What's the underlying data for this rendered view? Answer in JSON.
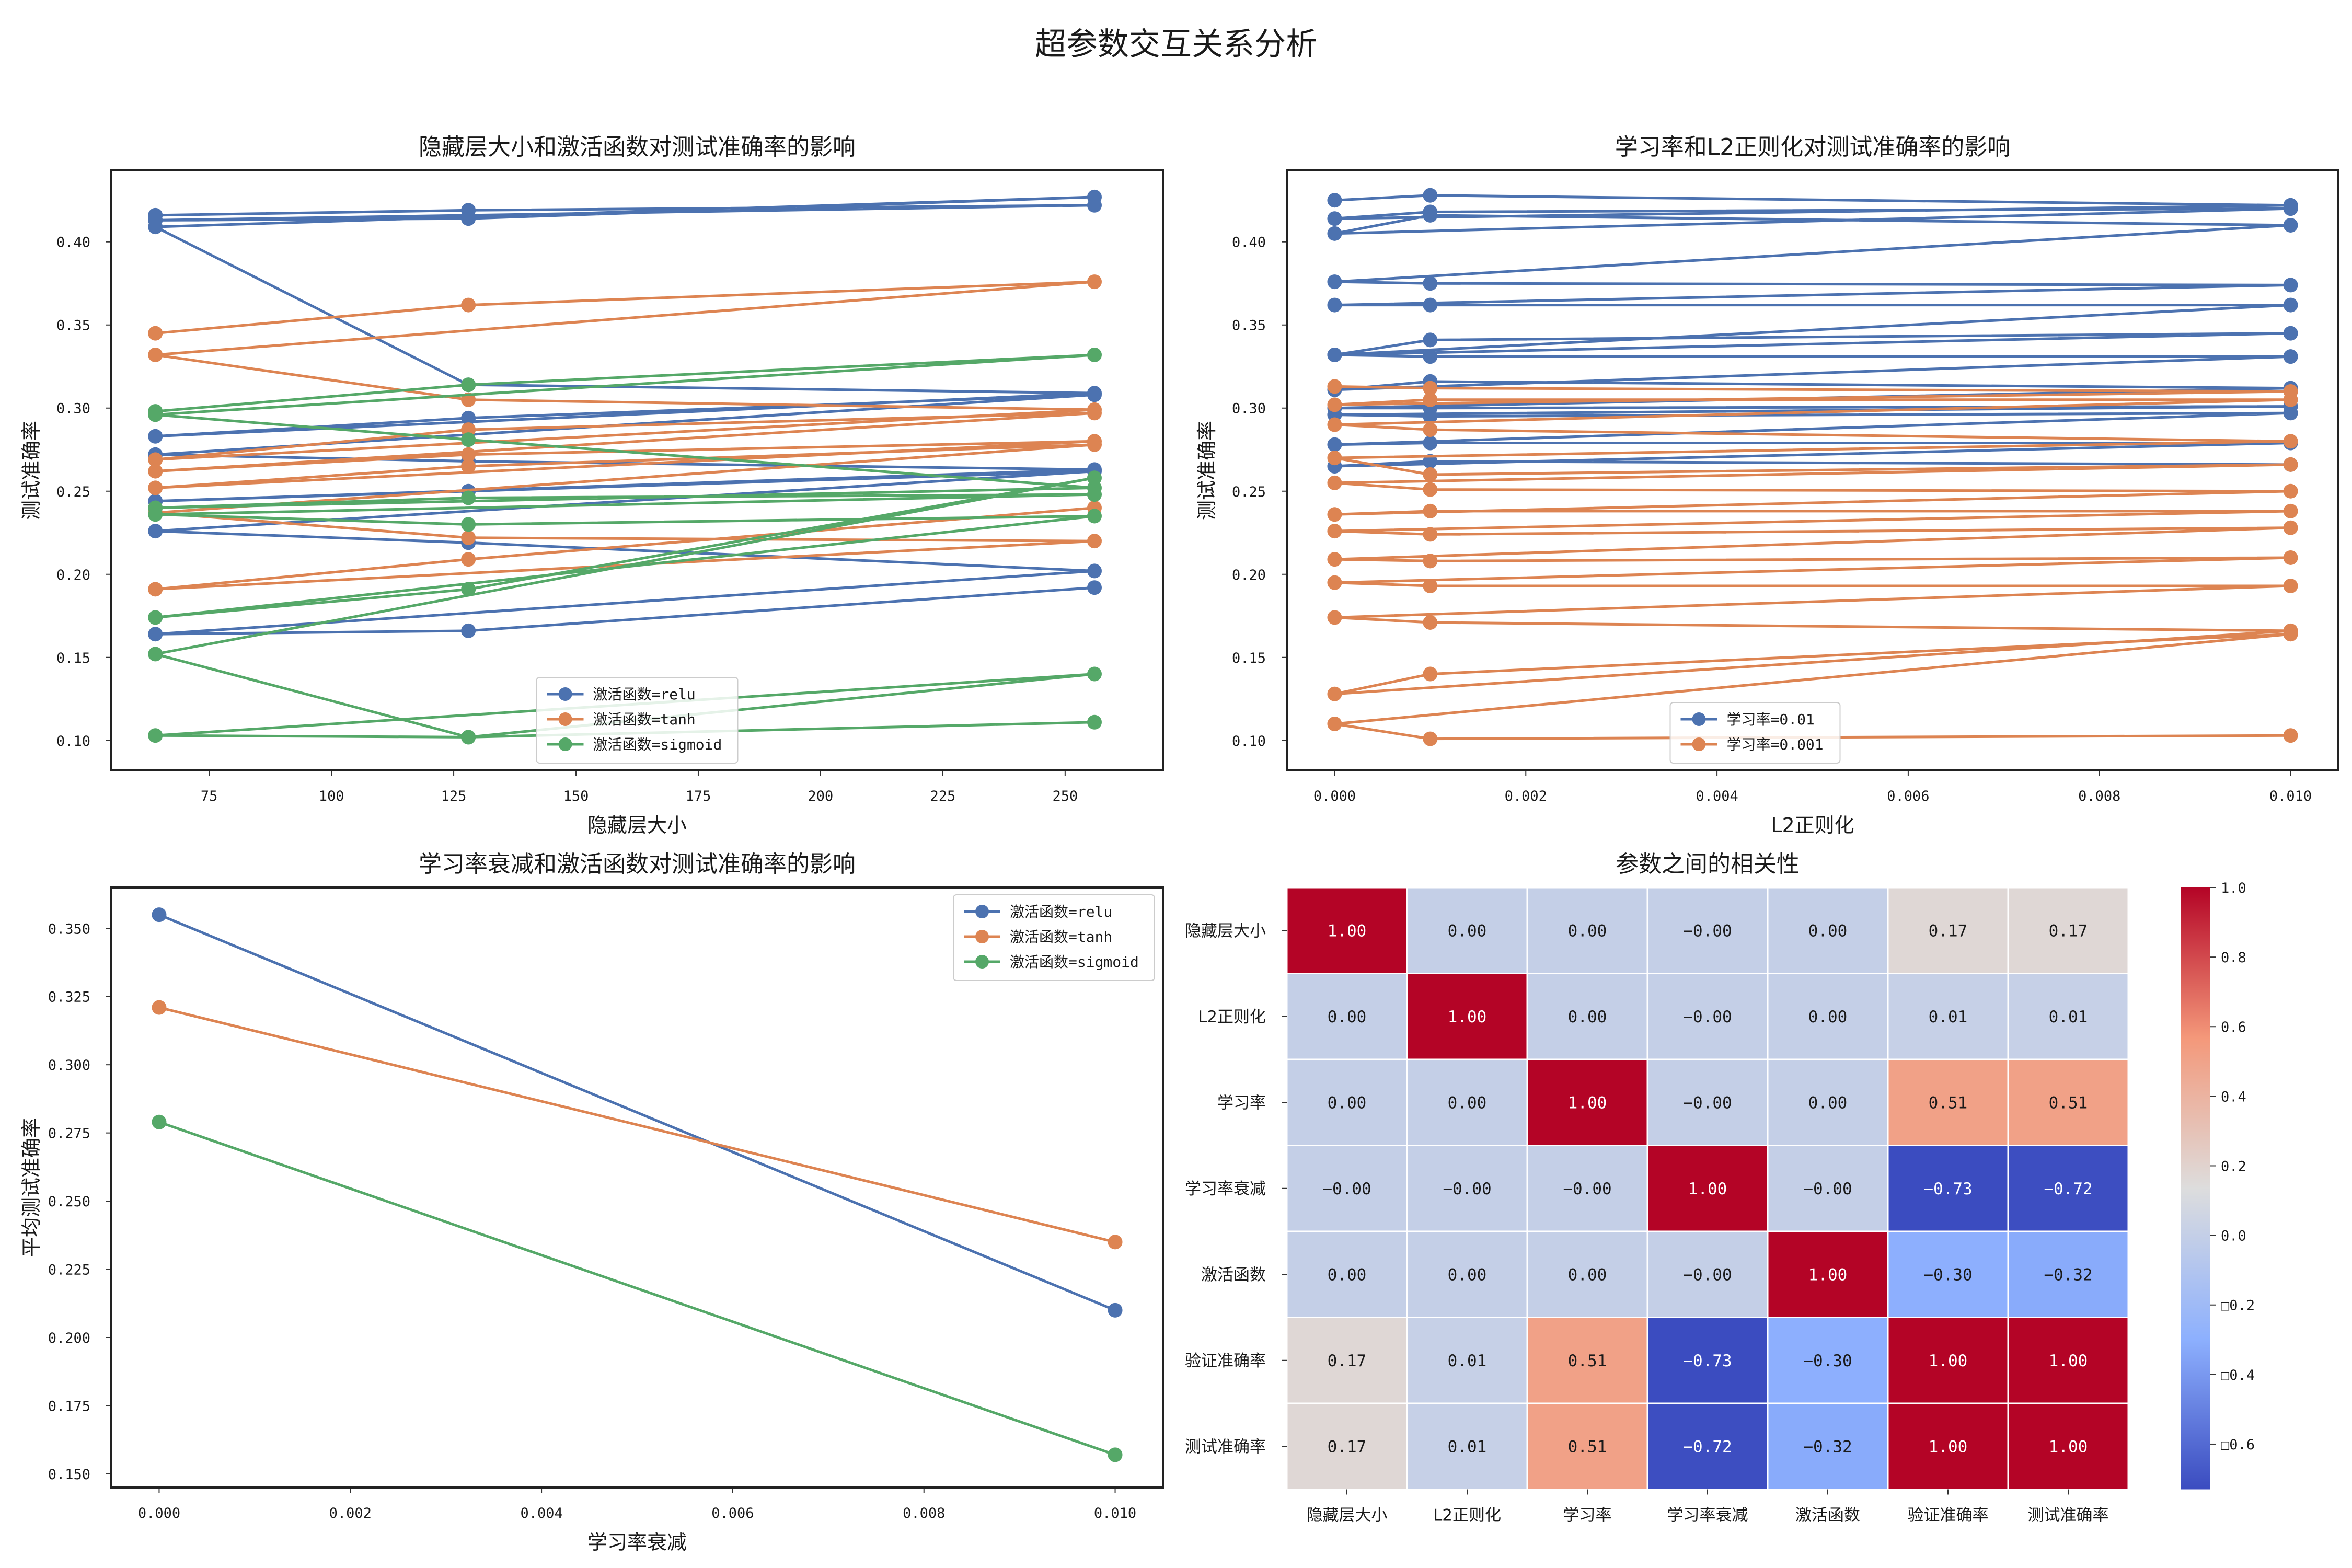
{
  "suptitle": "超参数交互关系分析",
  "colors": {
    "relu": "#4c72b0",
    "tanh": "#dd8452",
    "sigmoid": "#55a868",
    "lr01": "#4c72b0",
    "lr001": "#dd8452",
    "heat_low": "#3b4cc0",
    "heat_mid": "#dddddd",
    "heat_high": "#b40426"
  },
  "chart_data": [
    {
      "type": "line",
      "title": "隐藏层大小和激活函数对测试准确率的影响",
      "xlabel": "隐藏层大小",
      "ylabel": "测试准确率",
      "xlim": [
        55,
        270
      ],
      "ylim": [
        0.082,
        0.443
      ],
      "xticks": [
        75,
        100,
        125,
        150,
        175,
        200,
        225,
        250
      ],
      "yticks": [
        0.1,
        0.15,
        0.2,
        0.25,
        0.3,
        0.35,
        0.4
      ],
      "legend": "lower-center",
      "series": [
        {
          "name": "激活函数=relu",
          "color_key": "relu",
          "x": [
            64,
            128,
            256,
            64,
            128,
            256,
            64,
            128,
            256,
            64,
            128,
            256,
            64,
            128,
            256,
            64,
            128,
            256,
            64,
            128,
            256,
            64,
            128,
            256
          ],
          "y": [
            0.416,
            0.419,
            0.422,
            0.413,
            0.414,
            0.427,
            0.409,
            0.314,
            0.309,
            0.283,
            0.294,
            0.308,
            0.272,
            0.268,
            0.263,
            0.244,
            0.25,
            0.262,
            0.226,
            0.219,
            0.202,
            0.164,
            0.166,
            0.192
          ]
        },
        {
          "name": "激活函数=tanh",
          "color_key": "tanh",
          "x": [
            64,
            128,
            256,
            64,
            128,
            256,
            64,
            128,
            256,
            64,
            128,
            256,
            64,
            128,
            256,
            64,
            128,
            256,
            64,
            128,
            256
          ],
          "y": [
            0.345,
            0.362,
            0.376,
            0.332,
            0.305,
            0.299,
            0.269,
            0.287,
            0.297,
            0.262,
            0.272,
            0.28,
            0.252,
            0.265,
            0.278,
            0.237,
            0.222,
            0.22,
            0.191,
            0.209,
            0.24
          ]
        },
        {
          "name": "激活函数=sigmoid",
          "color_key": "sigmoid",
          "x": [
            64,
            128,
            256,
            64,
            128,
            256,
            64,
            128,
            256,
            64,
            128,
            256,
            64,
            128,
            256,
            64,
            128,
            256,
            64,
            128,
            256
          ],
          "y": [
            0.298,
            0.314,
            0.332,
            0.296,
            0.281,
            0.252,
            0.24,
            0.246,
            0.248,
            0.236,
            0.23,
            0.235,
            0.174,
            0.191,
            0.258,
            0.152,
            0.102,
            0.14,
            0.103,
            0.102,
            0.111
          ]
        }
      ]
    },
    {
      "type": "line",
      "title": "学习率和L2正则化对测试准确率的影响",
      "xlabel": "L2正则化",
      "ylabel": "测试准确率",
      "xlim": [
        -0.0005,
        0.0105
      ],
      "ylim": [
        0.082,
        0.443
      ],
      "xticks": [
        0.0,
        0.002,
        0.004,
        0.006,
        0.008,
        0.01
      ],
      "yticks": [
        0.1,
        0.15,
        0.2,
        0.25,
        0.3,
        0.35,
        0.4
      ],
      "legend": "lower-center",
      "series": [
        {
          "name": "学习率=0.01",
          "color_key": "lr01",
          "x": [
            0,
            0.001,
            0.01,
            0,
            0.001,
            0.01,
            0,
            0.001,
            0.01,
            0,
            0.001,
            0.01,
            0,
            0.001,
            0.01,
            0,
            0.001,
            0.01,
            0,
            0.001,
            0.01,
            0,
            0.001,
            0.01,
            0,
            0.001,
            0.01,
            0,
            0.001,
            0.01,
            0,
            0.001,
            0.01,
            0,
            0.001,
            0.01
          ],
          "y": [
            0.425,
            0.428,
            0.422,
            0.414,
            0.418,
            0.42,
            0.405,
            0.416,
            0.41,
            0.376,
            0.375,
            0.374,
            0.362,
            0.362,
            0.362,
            0.332,
            0.341,
            0.345,
            0.332,
            0.331,
            0.331,
            0.311,
            0.316,
            0.312,
            0.3,
            0.3,
            0.301,
            0.296,
            0.295,
            0.297,
            0.278,
            0.279,
            0.279,
            0.265,
            0.268,
            0.266
          ]
        },
        {
          "name": "学习率=0.001",
          "color_key": "lr001",
          "x": [
            0,
            0.001,
            0.01,
            0,
            0.001,
            0.01,
            0,
            0.001,
            0.01,
            0,
            0.001,
            0.01,
            0,
            0.001,
            0.01,
            0,
            0.001,
            0.01,
            0,
            0.001,
            0.01,
            0,
            0.001,
            0.01,
            0,
            0.001,
            0.01,
            0,
            0.001,
            0.01,
            0,
            0.001,
            0.01,
            0,
            0.001,
            0.01
          ],
          "y": [
            0.313,
            0.312,
            0.31,
            0.302,
            0.305,
            0.305,
            0.29,
            0.287,
            0.28,
            0.27,
            0.26,
            0.266,
            0.255,
            0.251,
            0.25,
            0.236,
            0.238,
            0.238,
            0.226,
            0.224,
            0.228,
            0.209,
            0.208,
            0.21,
            0.195,
            0.193,
            0.193,
            0.174,
            0.171,
            0.166,
            0.128,
            0.14,
            0.164,
            0.11,
            0.101,
            0.103
          ]
        }
      ]
    },
    {
      "type": "line",
      "title": "学习率衰减和激活函数对测试准确率的影响",
      "xlabel": "学习率衰减",
      "ylabel": "平均测试准确率",
      "xlim": [
        -0.0005,
        0.0105
      ],
      "ylim": [
        0.145,
        0.365
      ],
      "xticks": [
        0.0,
        0.002,
        0.004,
        0.006,
        0.008,
        0.01
      ],
      "yticks": [
        0.15,
        0.175,
        0.2,
        0.225,
        0.25,
        0.275,
        0.3,
        0.325,
        0.35
      ],
      "legend": "top-right",
      "series": [
        {
          "name": "激活函数=relu",
          "color_key": "relu",
          "x": [
            0.0,
            0.01
          ],
          "y": [
            0.355,
            0.21
          ]
        },
        {
          "name": "激活函数=tanh",
          "color_key": "tanh",
          "x": [
            0.0,
            0.01
          ],
          "y": [
            0.321,
            0.235
          ]
        },
        {
          "name": "激活函数=sigmoid",
          "color_key": "sigmoid",
          "x": [
            0.0,
            0.01
          ],
          "y": [
            0.279,
            0.157
          ]
        }
      ]
    },
    {
      "type": "heatmap",
      "title": "参数之间的相关性",
      "labels": [
        "隐藏层大小",
        "L2正则化",
        "学习率",
        "学习率衰减",
        "激活函数",
        "验证准确率",
        "测试准确率"
      ],
      "matrix": [
        [
          1.0,
          0.0,
          0.0,
          -0.0,
          0.0,
          0.17,
          0.17
        ],
        [
          0.0,
          1.0,
          0.0,
          -0.0,
          0.0,
          0.01,
          0.01
        ],
        [
          0.0,
          0.0,
          1.0,
          -0.0,
          0.0,
          0.51,
          0.51
        ],
        [
          -0.0,
          -0.0,
          -0.0,
          1.0,
          -0.0,
          -0.73,
          -0.72
        ],
        [
          0.0,
          0.0,
          0.0,
          -0.0,
          1.0,
          -0.3,
          -0.32
        ],
        [
          0.17,
          0.01,
          0.51,
          -0.73,
          -0.3,
          1.0,
          1.0
        ],
        [
          0.17,
          0.01,
          0.51,
          -0.72,
          -0.32,
          1.0,
          1.0
        ]
      ],
      "display": [
        [
          "1.00",
          "0.00",
          "0.00",
          "−0.00",
          "0.00",
          "0.17",
          "0.17"
        ],
        [
          "0.00",
          "1.00",
          "0.00",
          "−0.00",
          "0.00",
          "0.01",
          "0.01"
        ],
        [
          "0.00",
          "0.00",
          "1.00",
          "−0.00",
          "0.00",
          "0.51",
          "0.51"
        ],
        [
          "−0.00",
          "−0.00",
          "−0.00",
          "1.00",
          "−0.00",
          "−0.73",
          "−0.72"
        ],
        [
          "0.00",
          "0.00",
          "0.00",
          "−0.00",
          "1.00",
          "−0.30",
          "−0.32"
        ],
        [
          "0.17",
          "0.01",
          "0.51",
          "−0.73",
          "−0.30",
          "1.00",
          "1.00"
        ],
        [
          "0.17",
          "0.01",
          "0.51",
          "−0.72",
          "−0.32",
          "1.00",
          "1.00"
        ]
      ],
      "vmin": -0.73,
      "vmax": 1.0,
      "colorbar_ticks": [
        1.0,
        0.8,
        0.6,
        0.4,
        0.2,
        0.0,
        -0.2,
        -0.4,
        -0.6
      ],
      "colorbar_labels": [
        "1.0",
        "0.8",
        "0.6",
        "0.4",
        "0.2",
        "0.0",
        "□0.2",
        "□0.4",
        "□0.6"
      ]
    }
  ]
}
